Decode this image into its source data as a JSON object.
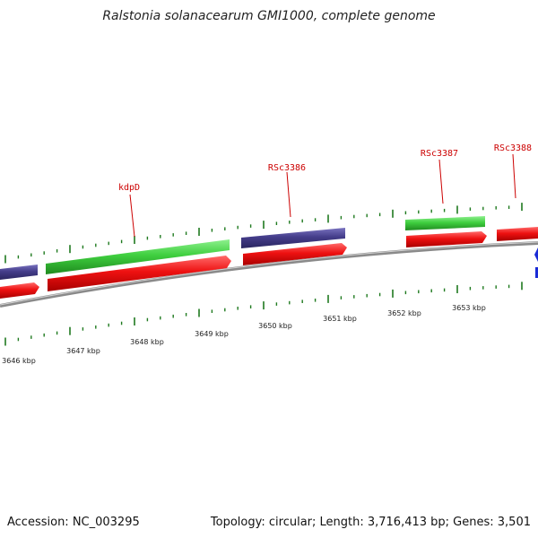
{
  "title": "Ralstonia solanacearum GMI1000, complete genome",
  "footer": {
    "accession": "Accession: NC_003295",
    "summary": "Topology: circular; Length: 3,716,413 bp; Genes: 3,501"
  },
  "scale": {
    "unit": "kbp",
    "tick_labels": [
      "3646 kbp",
      "3647 kbp",
      "3648 kbp",
      "3649 kbp",
      "3650 kbp",
      "3651 kbp",
      "3652 kbp",
      "3653 kbp"
    ]
  },
  "gene_labels": [
    "kdpD",
    "RSc3386",
    "RSc3387",
    "RSc3388"
  ],
  "colors": {
    "forward_strand": "#ee1111",
    "cds_green": "#3fcf3f",
    "cds_purple": "#443d8a",
    "backbone": "#8a8a8a",
    "ticks": "#1f7a1f",
    "labels": "#cc0000",
    "marker_blue": "#1a2bd6"
  }
}
